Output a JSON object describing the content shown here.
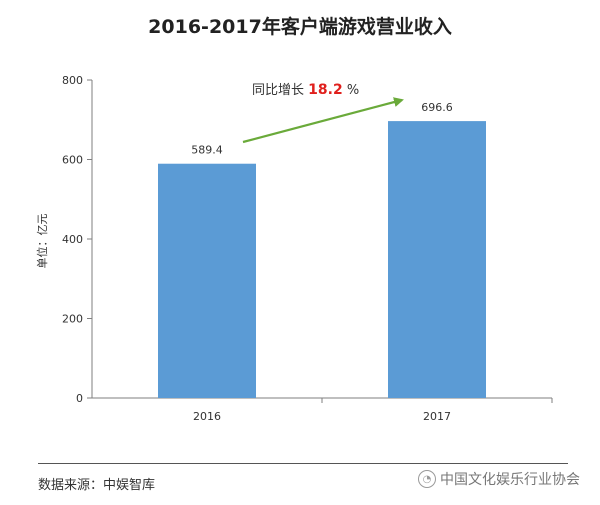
{
  "chart_data": {
    "type": "bar",
    "title": "2016-2017年客户端游戏营业收入",
    "ylabel": "单位：亿元",
    "xlabel": "",
    "categories": [
      "2016",
      "2017"
    ],
    "values": [
      589.4,
      696.6
    ],
    "value_labels": [
      "589.4",
      "696.6"
    ],
    "ylim": [
      0,
      800
    ],
    "yticks": [
      0,
      200,
      400,
      600,
      800
    ],
    "grid": false,
    "bar_color": "#5b9bd5",
    "annotation": {
      "prefix": "同比增长",
      "value": "18.2",
      "suffix": "%",
      "value_color": "#e0201d",
      "arrow_color": "#6aaa3a"
    }
  },
  "source": "数据来源：中娱智库",
  "watermark": {
    "text": "中国文化娱乐行业协会",
    "logo": "wechat-logo"
  }
}
